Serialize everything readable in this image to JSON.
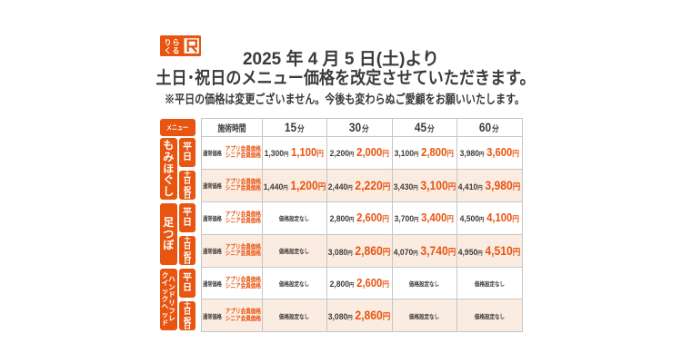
{
  "colors": {
    "accent": "#e85511",
    "weekend_row_bg": "#fbece2",
    "text_dark": "#3e3a39",
    "grid_line": "#c5c6c6",
    "page_bg": "#ffffff"
  },
  "logo": {
    "name": "りらくる",
    "kana_row1": "りら",
    "kana_row2": "くる",
    "r_letter": "R"
  },
  "header": {
    "date_line": "2025 年 4 月 5 日(土)より",
    "title_line": "土日･祝日のメニュー価格を改定させていただきます。",
    "note": "※平日の価格は変更ございません。今後も変わらぬご愛顧をお願いいたします。"
  },
  "table": {
    "menu_header": "メニュー",
    "time_header": "施術時間",
    "minute_unit": "分",
    "time_columns": [
      "15",
      "30",
      "45",
      "60"
    ],
    "yen": "円",
    "no_price_label": "価格設定なし",
    "normal_price_label": "通常価格",
    "member_price_labels": [
      "アプリ会員価格",
      "シニア会員価格"
    ],
    "weekday_label": "平日",
    "weekend_label": "土日・祝日",
    "categories": [
      {
        "name": [
          "もみほぐし"
        ],
        "rows": [
          {
            "day_type": "weekday",
            "prices": [
              [
                "1,300",
                "1,100"
              ],
              [
                "2,200",
                "2,000"
              ],
              [
                "3,100",
                "2,800"
              ],
              [
                "3,980",
                "3,600"
              ]
            ]
          },
          {
            "day_type": "weekend",
            "prices": [
              [
                "1,440",
                "1,200"
              ],
              [
                "2,440",
                "2,220"
              ],
              [
                "3,430",
                "3,100"
              ],
              [
                "4,410",
                "3,980"
              ]
            ]
          }
        ]
      },
      {
        "name": [
          "足つぼ"
        ],
        "rows": [
          {
            "day_type": "weekday",
            "prices": [
              null,
              [
                "2,800",
                "2,600"
              ],
              [
                "3,700",
                "3,400"
              ],
              [
                "4,500",
                "4,100"
              ]
            ]
          },
          {
            "day_type": "weekend",
            "prices": [
              null,
              [
                "3,080",
                "2,860"
              ],
              [
                "4,070",
                "3,740"
              ],
              [
                "4,950",
                "4,510"
              ]
            ]
          }
        ]
      },
      {
        "name": [
          "ハンドリフレ",
          "クイックヘッド"
        ],
        "rows": [
          {
            "day_type": "weekday",
            "prices": [
              null,
              [
                "2,800",
                "2,600"
              ],
              null,
              null
            ]
          },
          {
            "day_type": "weekend",
            "prices": [
              null,
              [
                "3,080",
                "2,860"
              ],
              null,
              null
            ]
          }
        ]
      }
    ]
  }
}
